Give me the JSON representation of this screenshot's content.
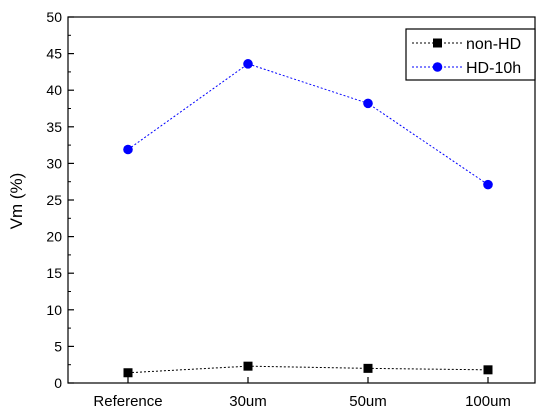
{
  "chart_data": {
    "type": "line",
    "categories": [
      "Reference",
      "30um",
      "50um",
      "100um"
    ],
    "ylabel": "Vm (%)",
    "xlabel": "",
    "ylim": [
      0,
      50
    ],
    "yticks": [
      0,
      5,
      10,
      15,
      20,
      25,
      30,
      35,
      40,
      45,
      50
    ],
    "grid": false,
    "legend_position": "top-right",
    "series": [
      {
        "name": "non-HD",
        "values": [
          1.4,
          2.3,
          2.0,
          1.8
        ],
        "color": "#000000",
        "marker": "square",
        "line_style": "dotted"
      },
      {
        "name": "HD-10h",
        "values": [
          31.9,
          43.6,
          38.2,
          27.1
        ],
        "color": "#0000ff",
        "marker": "circle",
        "line_style": "dotted"
      }
    ]
  }
}
